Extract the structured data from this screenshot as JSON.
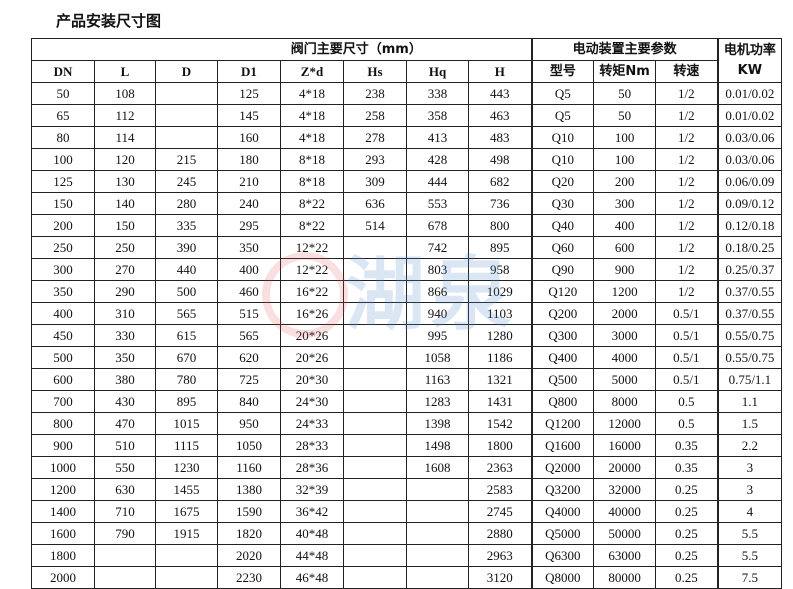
{
  "title": "产品安装尺寸图",
  "header": {
    "valve_group": "阀门主要尺寸（mm）",
    "actuator_group": "电动装置主要参数",
    "power": "电机功率KW",
    "columns": [
      "DN",
      "L",
      "D",
      "D1",
      "Z*d",
      "Hs",
      "Hq",
      "H",
      "型号",
      "转矩Nm",
      "转速"
    ]
  },
  "watermark": "湖泉",
  "rows": [
    [
      "50",
      "108",
      "",
      "125",
      "4*18",
      "238",
      "338",
      "443",
      "Q5",
      "50",
      "1/2",
      "0.01/0.02"
    ],
    [
      "65",
      "112",
      "",
      "145",
      "4*18",
      "258",
      "358",
      "463",
      "Q5",
      "50",
      "1/2",
      "0.01/0.02"
    ],
    [
      "80",
      "114",
      "",
      "160",
      "4*18",
      "278",
      "413",
      "483",
      "Q10",
      "100",
      "1/2",
      "0.03/0.06"
    ],
    [
      "100",
      "120",
      "215",
      "180",
      "8*18",
      "293",
      "428",
      "498",
      "Q10",
      "100",
      "1/2",
      "0.03/0.06"
    ],
    [
      "125",
      "130",
      "245",
      "210",
      "8*18",
      "309",
      "444",
      "682",
      "Q20",
      "200",
      "1/2",
      "0.06/0.09"
    ],
    [
      "150",
      "140",
      "280",
      "240",
      "8*22",
      "636",
      "553",
      "736",
      "Q30",
      "300",
      "1/2",
      "0.09/0.12"
    ],
    [
      "200",
      "150",
      "335",
      "295",
      "8*22",
      "514",
      "678",
      "800",
      "Q40",
      "400",
      "1/2",
      "0.12/0.18"
    ],
    [
      "250",
      "250",
      "390",
      "350",
      "12*22",
      "",
      "742",
      "895",
      "Q60",
      "600",
      "1/2",
      "0.18/0.25"
    ],
    [
      "300",
      "270",
      "440",
      "400",
      "12*22",
      "",
      "803",
      "958",
      "Q90",
      "900",
      "1/2",
      "0.25/0.37"
    ],
    [
      "350",
      "290",
      "500",
      "460",
      "16*22",
      "",
      "866",
      "1029",
      "Q120",
      "1200",
      "1/2",
      "0.37/0.55"
    ],
    [
      "400",
      "310",
      "565",
      "515",
      "16*26",
      "",
      "940",
      "1103",
      "Q200",
      "2000",
      "0.5/1",
      "0.37/0.55"
    ],
    [
      "450",
      "330",
      "615",
      "565",
      "20*26",
      "",
      "995",
      "1280",
      "Q300",
      "3000",
      "0.5/1",
      "0.55/0.75"
    ],
    [
      "500",
      "350",
      "670",
      "620",
      "20*26",
      "",
      "1058",
      "1186",
      "Q400",
      "4000",
      "0.5/1",
      "0.55/0.75"
    ],
    [
      "600",
      "380",
      "780",
      "725",
      "20*30",
      "",
      "1163",
      "1321",
      "Q500",
      "5000",
      "0.5/1",
      "0.75/1.1"
    ],
    [
      "700",
      "430",
      "895",
      "840",
      "24*30",
      "",
      "1283",
      "1431",
      "Q800",
      "8000",
      "0.5",
      "1.1"
    ],
    [
      "800",
      "470",
      "1015",
      "950",
      "24*33",
      "",
      "1398",
      "1542",
      "Q1200",
      "12000",
      "0.5",
      "1.5"
    ],
    [
      "900",
      "510",
      "1115",
      "1050",
      "28*33",
      "",
      "1498",
      "1800",
      "Q1600",
      "16000",
      "0.35",
      "2.2"
    ],
    [
      "1000",
      "550",
      "1230",
      "1160",
      "28*36",
      "",
      "1608",
      "2363",
      "Q2000",
      "20000",
      "0.35",
      "3"
    ],
    [
      "1200",
      "630",
      "1455",
      "1380",
      "32*39",
      "",
      "",
      "2583",
      "Q3200",
      "32000",
      "0.25",
      "3"
    ],
    [
      "1400",
      "710",
      "1675",
      "1590",
      "36*42",
      "",
      "",
      "2745",
      "Q4000",
      "40000",
      "0.25",
      "4"
    ],
    [
      "1600",
      "790",
      "1915",
      "1820",
      "40*48",
      "",
      "",
      "2880",
      "Q5000",
      "50000",
      "0.25",
      "5.5"
    ],
    [
      "1800",
      "",
      "",
      "2020",
      "44*48",
      "",
      "",
      "2963",
      "Q6300",
      "63000",
      "0.25",
      "5.5"
    ],
    [
      "2000",
      "",
      "",
      "2230",
      "46*48",
      "",
      "",
      "3120",
      "Q8000",
      "80000",
      "0.25",
      "7.5"
    ]
  ]
}
